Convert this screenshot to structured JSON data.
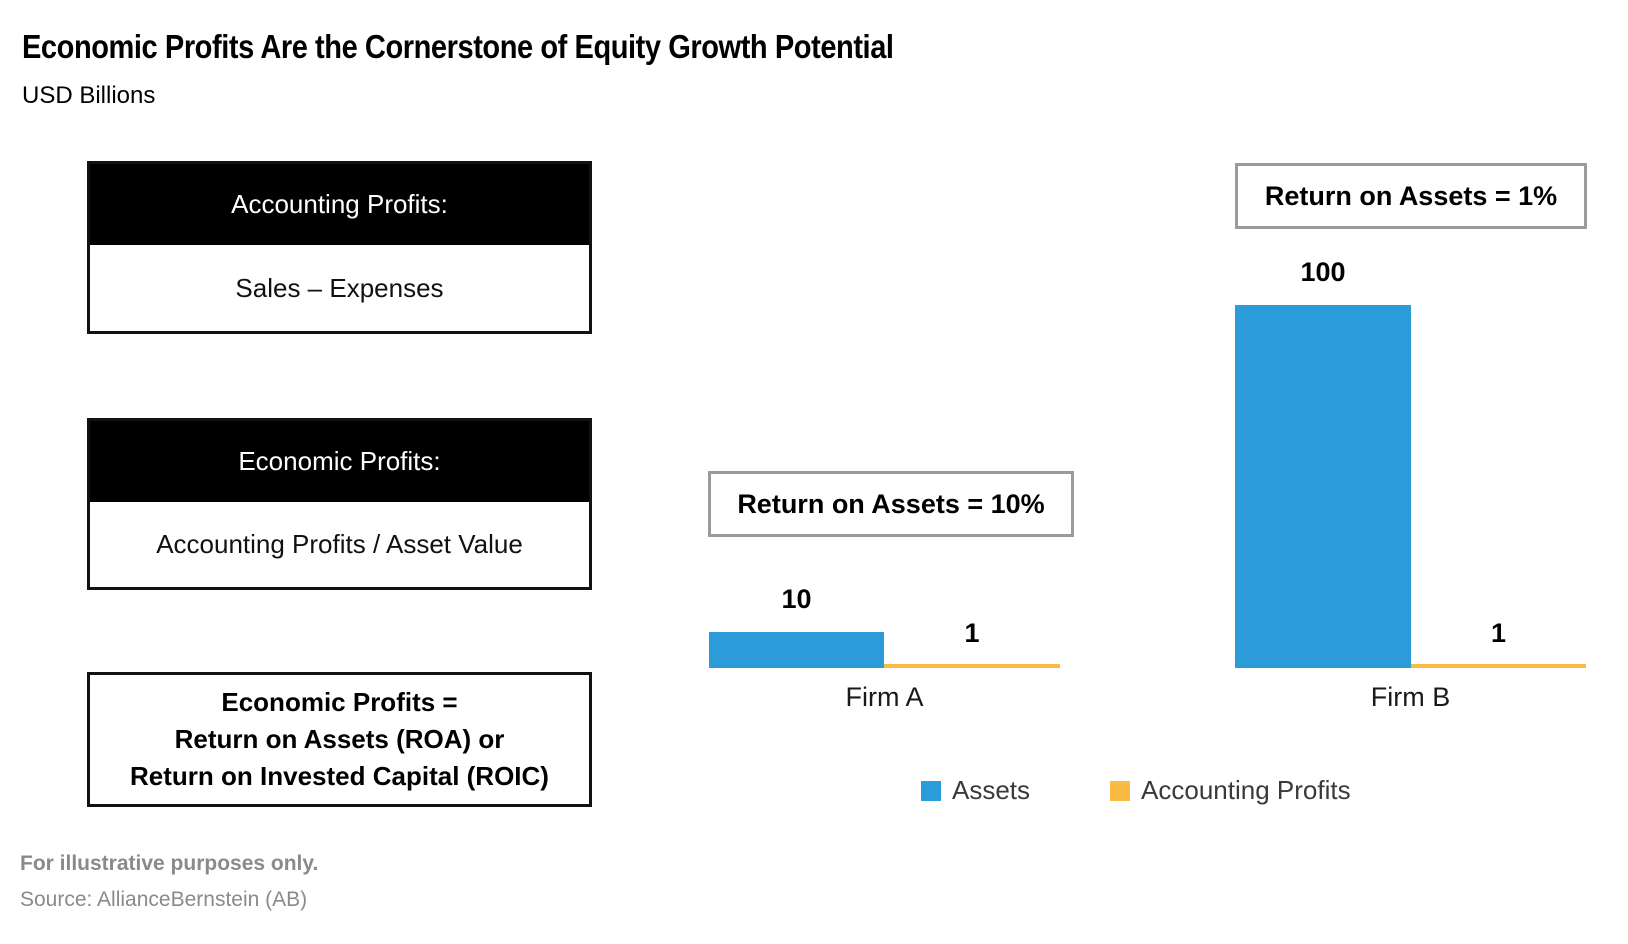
{
  "header": {
    "title": "Economic Profits Are the Cornerstone of Equity Growth Potential",
    "subtitle": "USD Billions"
  },
  "definitions": [
    {
      "header": "Accounting Profits:",
      "body": "Sales – Expenses"
    },
    {
      "header": "Economic Profits:",
      "body": "Accounting Profits / Asset Value"
    }
  ],
  "formula_box": {
    "line1": "Economic Profits =",
    "line2": "Return on Assets (ROA) or",
    "line3": "Return on Invested Capital (ROIC)"
  },
  "chart_data": {
    "type": "bar",
    "categories": [
      "Firm A",
      "Firm B"
    ],
    "series": [
      {
        "name": "Assets",
        "values": [
          10,
          100
        ],
        "color": "#2B9CD9"
      },
      {
        "name": "Accounting Profits",
        "values": [
          1,
          1
        ],
        "color": "#FABB43"
      }
    ],
    "annotations": [
      {
        "target": "Firm A",
        "text": "Return on Assets = 10%"
      },
      {
        "target": "Firm B",
        "text": "Return on Assets = 1%"
      }
    ],
    "ylabel": "USD Billions",
    "ylim": [
      0,
      100
    ],
    "grid": false,
    "legend_position": "bottom"
  },
  "legend": [
    {
      "label": "Assets",
      "color": "#2B9CD9"
    },
    {
      "label": "Accounting Profits",
      "color": "#FABB43"
    }
  ],
  "footer": {
    "note": "For illustrative purposes only.",
    "source": "Source: AllianceBernstein (AB)"
  },
  "colors": {
    "assets_blue": "#2B9CD9",
    "profits_yellow": "#FABB43",
    "box_black": "#000000",
    "callout_border": "#9B9B9B"
  }
}
